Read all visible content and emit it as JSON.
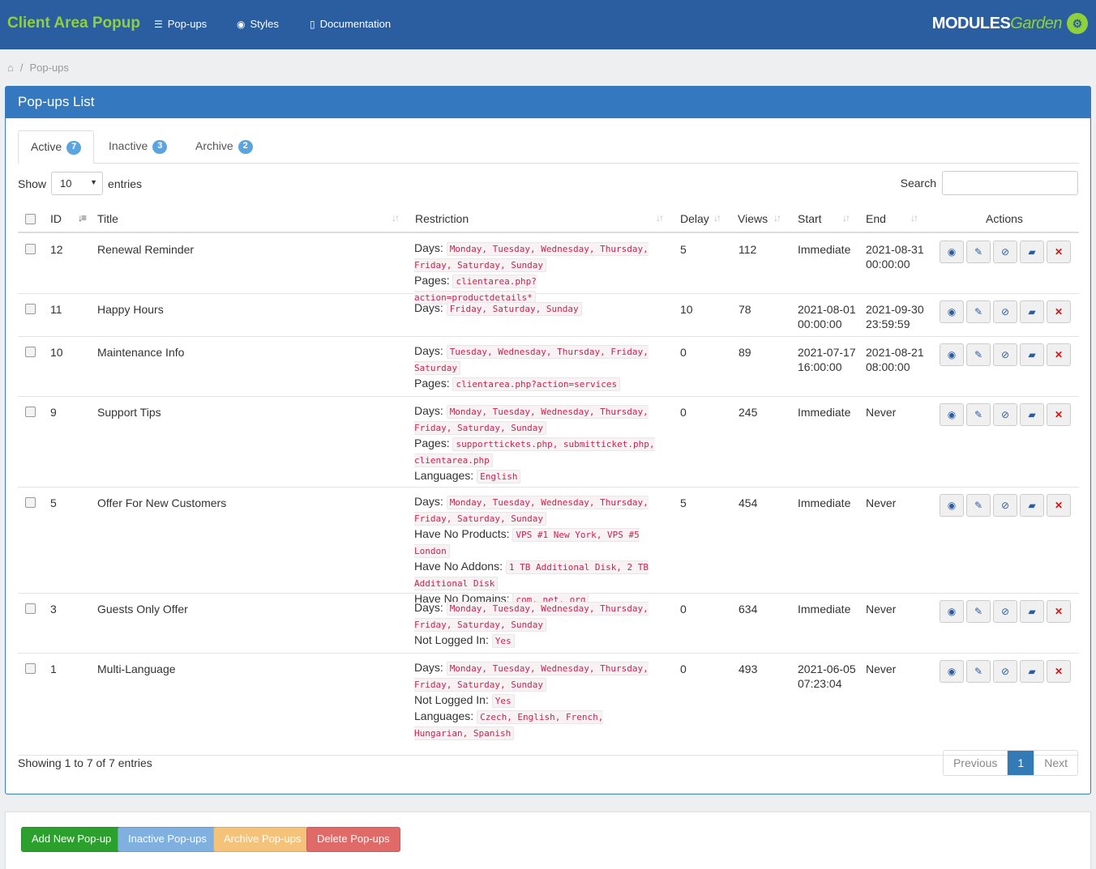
{
  "app": {
    "title": "Client Area Popup"
  },
  "nav": [
    {
      "label": "Pop-ups",
      "icon": "list-icon"
    },
    {
      "label": "Styles",
      "icon": "eye-icon"
    },
    {
      "label": "Documentation",
      "icon": "book-icon"
    }
  ],
  "logo": {
    "main": "MODULES",
    "accent": "Garden",
    "badge": "⚙"
  },
  "breadcrumb": {
    "current": "Pop-ups"
  },
  "panel": {
    "title": "Pop-ups List"
  },
  "tabs": [
    {
      "label": "Active",
      "count": "7"
    },
    {
      "label": "Inactive",
      "count": "3"
    },
    {
      "label": "Archive",
      "count": "2"
    }
  ],
  "controls": {
    "show": "Show",
    "entries": "entries",
    "page_size": "10",
    "search_label": "Search",
    "search_value": ""
  },
  "table": {
    "headers": {
      "id": "ID",
      "title": "Title",
      "restriction": "Restriction",
      "delay": "Delay",
      "views": "Views",
      "start": "Start",
      "end": "End",
      "actions": "Actions"
    },
    "rows": [
      {
        "id": "12",
        "title": "Renewal Reminder",
        "delay": "5",
        "views": "112",
        "start": "Immediate",
        "end": "2021-08-31 00:00:00",
        "restrictions": [
          {
            "label": "Days:",
            "value": "Monday, Tuesday, Wednesday, Thursday, Friday, Saturday, Sunday"
          },
          {
            "label": "Pages:",
            "value": "clientarea.php?action=productdetails*"
          }
        ]
      },
      {
        "id": "11",
        "title": "Happy Hours",
        "delay": "10",
        "views": "78",
        "start": "2021-08-01 00:00:00",
        "end": "2021-09-30 23:59:59",
        "restrictions": [
          {
            "label": "Days:",
            "value": "Friday, Saturday, Sunday"
          }
        ]
      },
      {
        "id": "10",
        "title": "Maintenance Info",
        "delay": "0",
        "views": "89",
        "start": "2021-07-17 16:00:00",
        "end": "2021-08-21 08:00:00",
        "restrictions": [
          {
            "label": "Days:",
            "value": "Tuesday, Wednesday, Thursday, Friday, Saturday"
          },
          {
            "label": "Pages:",
            "value": "clientarea.php?action=services"
          }
        ]
      },
      {
        "id": "9",
        "title": "Support Tips",
        "delay": "0",
        "views": "245",
        "start": "Immediate",
        "end": "Never",
        "restrictions": [
          {
            "label": "Days:",
            "value": "Monday, Tuesday, Wednesday, Thursday, Friday, Saturday, Sunday"
          },
          {
            "label": "Pages:",
            "value": "supporttickets.php, submitticket.php, clientarea.php"
          },
          {
            "label": "Languages:",
            "value": "English"
          }
        ]
      },
      {
        "id": "5",
        "title": "Offer For New Customers",
        "delay": "5",
        "views": "454",
        "start": "Immediate",
        "end": "Never",
        "restrictions": [
          {
            "label": "Days:",
            "value": "Monday, Tuesday, Wednesday, Thursday, Friday, Saturday, Sunday"
          },
          {
            "label": "Have No Products:",
            "value": "VPS #1 New York, VPS #5 London"
          },
          {
            "label": "Have No Addons:",
            "value": "1 TB Additional Disk, 2 TB Additional Disk"
          },
          {
            "label": "Have No Domains:",
            "value": "com, net, org"
          }
        ]
      },
      {
        "id": "3",
        "title": "Guests Only Offer",
        "delay": "0",
        "views": "634",
        "start": "Immediate",
        "end": "Never",
        "restrictions": [
          {
            "label": "Days:",
            "value": "Monday, Tuesday, Wednesday, Thursday, Friday, Saturday, Sunday"
          },
          {
            "label": "Not Logged In:",
            "value": "Yes"
          }
        ]
      },
      {
        "id": "1",
        "title": "Multi-Language",
        "delay": "0",
        "views": "493",
        "start": "2021-06-05 07:23:04",
        "end": "Never",
        "restrictions": [
          {
            "label": "Days:",
            "value": "Monday, Tuesday, Wednesday, Thursday, Friday, Saturday, Sunday"
          },
          {
            "label": "Not Logged In:",
            "value": "Yes"
          },
          {
            "label": "Languages:",
            "value": "Czech, English, French, Hungarian, Spanish"
          }
        ]
      }
    ]
  },
  "footer": {
    "info": "Showing 1 to 7 of 7 entries",
    "previous": "Previous",
    "page": "1",
    "next": "Next"
  },
  "buttons": [
    {
      "label": "Add New Pop-up",
      "color": "#2ca02c"
    },
    {
      "label": "Inactive Pop-ups",
      "color": "#7fb0e0"
    },
    {
      "label": "Archive Pop-ups",
      "color": "#f5c27a"
    },
    {
      "label": "Delete Pop-ups",
      "color": "#e06a68"
    }
  ]
}
